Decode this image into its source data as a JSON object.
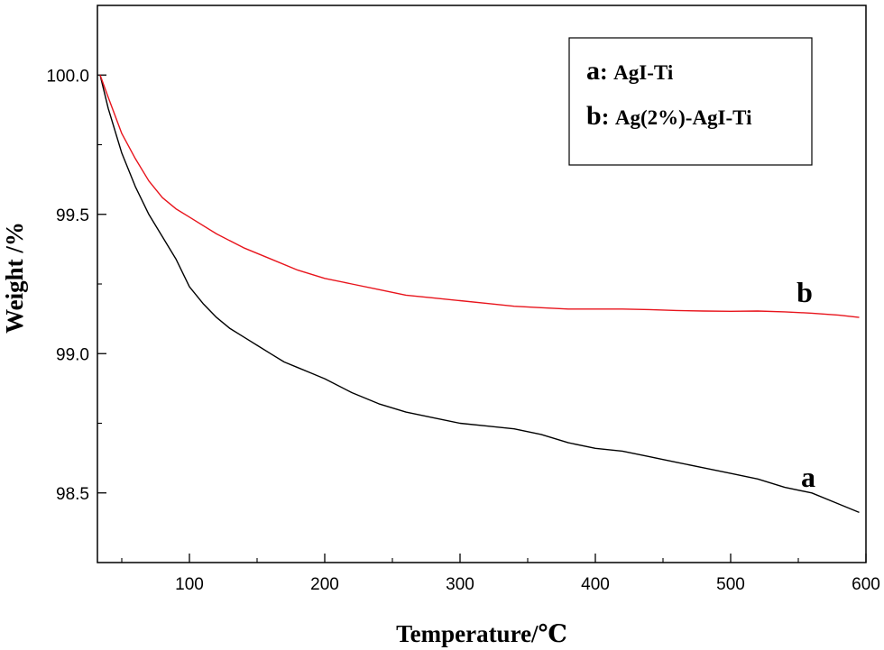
{
  "chart_data": {
    "type": "line",
    "xlabel": "Temperature/℃",
    "ylabel": "Weight /%",
    "xlim": [
      32,
      600
    ],
    "ylim": [
      98.25,
      100.25
    ],
    "xticks": [
      100,
      200,
      300,
      400,
      500,
      600
    ],
    "yticks": [
      98.5,
      99.0,
      99.5,
      100.0
    ],
    "ytick_labels": [
      "98.5",
      "99.0",
      "99.5",
      "100.0"
    ],
    "grid": false,
    "legend": {
      "position": "top-right",
      "entries": [
        {
          "key": "a",
          "text": "AgI-Ti"
        },
        {
          "key": "b",
          "text": "Ag(2%)-AgI-Ti"
        }
      ]
    },
    "series": [
      {
        "name": "AgI-Ti",
        "label": "a",
        "color": "#000000",
        "x": [
          34,
          40,
          50,
          60,
          70,
          80,
          90,
          100,
          110,
          120,
          130,
          140,
          150,
          160,
          170,
          180,
          190,
          200,
          220,
          240,
          260,
          280,
          300,
          320,
          340,
          360,
          380,
          400,
          420,
          440,
          460,
          480,
          500,
          520,
          540,
          560,
          580,
          595
        ],
        "y": [
          100.0,
          99.88,
          99.72,
          99.6,
          99.5,
          99.42,
          99.34,
          99.24,
          99.18,
          99.13,
          99.09,
          99.06,
          99.03,
          99.0,
          98.97,
          98.95,
          98.93,
          98.91,
          98.86,
          98.82,
          98.79,
          98.77,
          98.75,
          98.74,
          98.73,
          98.71,
          98.68,
          98.66,
          98.65,
          98.63,
          98.61,
          98.59,
          98.57,
          98.55,
          98.52,
          98.5,
          98.46,
          98.43
        ]
      },
      {
        "name": "Ag(2%)-AgI-Ti",
        "label": "b",
        "color": "#e8141c",
        "x": [
          34,
          40,
          50,
          60,
          70,
          80,
          90,
          100,
          120,
          140,
          160,
          180,
          200,
          220,
          240,
          260,
          280,
          300,
          320,
          340,
          360,
          380,
          400,
          420,
          440,
          460,
          480,
          500,
          520,
          540,
          560,
          580,
          595
        ],
        "y": [
          100.0,
          99.92,
          99.79,
          99.7,
          99.62,
          99.56,
          99.52,
          99.49,
          99.43,
          99.38,
          99.34,
          99.3,
          99.27,
          99.25,
          99.23,
          99.21,
          99.2,
          99.19,
          99.18,
          99.17,
          99.165,
          99.16,
          99.16,
          99.16,
          99.158,
          99.155,
          99.153,
          99.152,
          99.153,
          99.15,
          99.145,
          99.138,
          99.13
        ]
      }
    ]
  }
}
